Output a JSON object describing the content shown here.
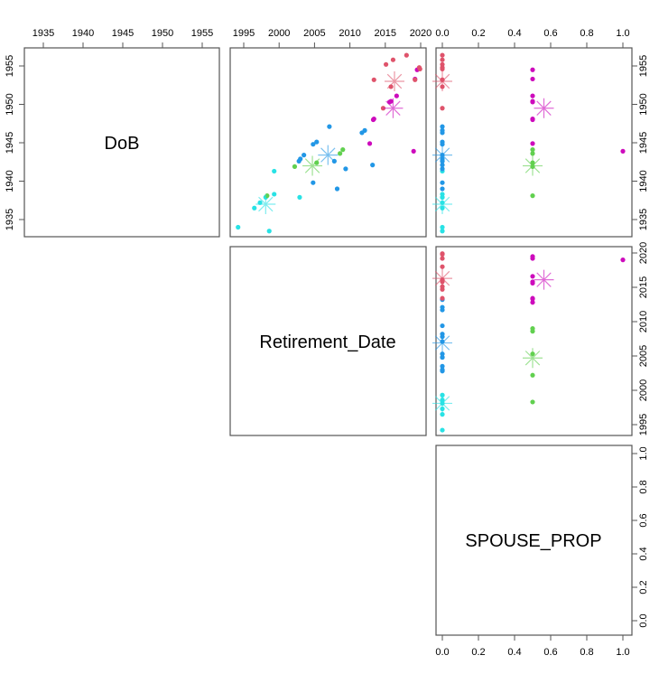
{
  "chart_data": {
    "type": "scatter",
    "title": "",
    "subtitle": "",
    "layout": "pairs (scatterplot matrix), upper panels only, k-means cluster coloring with centroid stars",
    "variables": [
      "DoB",
      "Retirement_Date",
      "SPOUSE_PROP"
    ],
    "axes": {
      "DoB": {
        "range": [
          1932.6,
          1957.3
        ],
        "ticks": [
          1935,
          1940,
          1945,
          1950,
          1955
        ]
      },
      "Retirement_Date": {
        "range": [
          1993.3,
          2020.8
        ],
        "ticks": [
          1995,
          2000,
          2005,
          2010,
          2015,
          2020
        ]
      },
      "SPOUSE_PROP": {
        "range": [
          -0.04,
          1.04
        ],
        "ticks": [
          0.0,
          0.2,
          0.4,
          0.6,
          0.8,
          1.0
        ],
        "tick_labels": [
          "0.0",
          "0.2",
          "0.4",
          "0.6",
          "0.8",
          "1.0"
        ]
      }
    },
    "grid": false,
    "legend": "none",
    "clusters": [
      {
        "name": "cluster-cyan",
        "color": "#28E2E5",
        "points": [
          {
            "DoB": 1934.0,
            "Retirement_Date": 1994.2,
            "SPOUSE_PROP": 0.0
          },
          {
            "DoB": 1933.5,
            "Retirement_Date": 1998.6,
            "SPOUSE_PROP": 0.0
          },
          {
            "DoB": 1936.5,
            "Retirement_Date": 1996.5,
            "SPOUSE_PROP": 0.0
          },
          {
            "DoB": 1937.2,
            "Retirement_Date": 1997.3,
            "SPOUSE_PROP": 0.0
          },
          {
            "DoB": 1937.9,
            "Retirement_Date": 1998.1,
            "SPOUSE_PROP": 0.0
          },
          {
            "DoB": 1938.3,
            "Retirement_Date": 1999.3,
            "SPOUSE_PROP": 0.0
          },
          {
            "DoB": 1941.3,
            "Retirement_Date": 1999.3,
            "SPOUSE_PROP": 0.0
          },
          {
            "DoB": 1937.9,
            "Retirement_Date": 2002.9,
            "SPOUSE_PROP": 0.0
          }
        ],
        "centroid": {
          "DoB": 1937.0,
          "Retirement_Date": 1998.1,
          "SPOUSE_PROP": 0.0
        }
      },
      {
        "name": "cluster-green",
        "color": "#61D04F",
        "points": [
          {
            "DoB": 1938.1,
            "Retirement_Date": 1998.3,
            "SPOUSE_PROP": 0.5
          },
          {
            "DoB": 1941.9,
            "Retirement_Date": 2002.2,
            "SPOUSE_PROP": 0.5
          },
          {
            "DoB": 1942.4,
            "Retirement_Date": 2005.3,
            "SPOUSE_PROP": 0.5
          },
          {
            "DoB": 1943.6,
            "Retirement_Date": 2008.6,
            "SPOUSE_PROP": 0.5
          },
          {
            "DoB": 1944.1,
            "Retirement_Date": 2009.0,
            "SPOUSE_PROP": 0.5
          }
        ],
        "centroid": {
          "DoB": 1942.0,
          "Retirement_Date": 2004.7,
          "SPOUSE_PROP": 0.5
        }
      },
      {
        "name": "cluster-blue",
        "color": "#2297E6",
        "points": [
          {
            "DoB": 1942.6,
            "Retirement_Date": 2002.8,
            "SPOUSE_PROP": 0.0
          },
          {
            "DoB": 1942.9,
            "Retirement_Date": 2003.0,
            "SPOUSE_PROP": 0.0
          },
          {
            "DoB": 1943.4,
            "Retirement_Date": 2003.5,
            "SPOUSE_PROP": 0.0
          },
          {
            "DoB": 1944.8,
            "Retirement_Date": 2004.8,
            "SPOUSE_PROP": 0.0
          },
          {
            "DoB": 1945.1,
            "Retirement_Date": 2005.3,
            "SPOUSE_PROP": 0.0
          },
          {
            "DoB": 1947.1,
            "Retirement_Date": 2007.1,
            "SPOUSE_PROP": 0.0
          },
          {
            "DoB": 1942.6,
            "Retirement_Date": 2007.8,
            "SPOUSE_PROP": 0.0
          },
          {
            "DoB": 1941.6,
            "Retirement_Date": 2009.4,
            "SPOUSE_PROP": 0.0
          },
          {
            "DoB": 1939.8,
            "Retirement_Date": 2004.8,
            "SPOUSE_PROP": 0.0
          },
          {
            "DoB": 1939.0,
            "Retirement_Date": 2008.2,
            "SPOUSE_PROP": 0.0
          },
          {
            "DoB": 1946.3,
            "Retirement_Date": 2011.7,
            "SPOUSE_PROP": 0.0
          },
          {
            "DoB": 1946.6,
            "Retirement_Date": 2012.1,
            "SPOUSE_PROP": 0.0
          },
          {
            "DoB": 1942.1,
            "Retirement_Date": 2013.2,
            "SPOUSE_PROP": 0.0
          }
        ],
        "centroid": {
          "DoB": 1943.4,
          "Retirement_Date": 2006.9,
          "SPOUSE_PROP": 0.0
        }
      },
      {
        "name": "cluster-magenta",
        "color": "#CD0BBC",
        "points": [
          {
            "DoB": 1944.9,
            "Retirement_Date": 2012.8,
            "SPOUSE_PROP": 0.5
          },
          {
            "DoB": 1948.0,
            "Retirement_Date": 2013.3,
            "SPOUSE_PROP": 0.5
          },
          {
            "DoB": 1948.1,
            "Retirement_Date": 2013.4,
            "SPOUSE_PROP": 0.5
          },
          {
            "DoB": 1950.3,
            "Retirement_Date": 2015.6,
            "SPOUSE_PROP": 0.5
          },
          {
            "DoB": 1950.4,
            "Retirement_Date": 2015.8,
            "SPOUSE_PROP": 0.5
          },
          {
            "DoB": 1951.1,
            "Retirement_Date": 2016.6,
            "SPOUSE_PROP": 0.5
          },
          {
            "DoB": 1943.9,
            "Retirement_Date": 2019.0,
            "SPOUSE_PROP": 1.0
          },
          {
            "DoB": 1954.5,
            "Retirement_Date": 2019.5,
            "SPOUSE_PROP": 0.5
          },
          {
            "DoB": 1953.3,
            "Retirement_Date": 2019.2,
            "SPOUSE_PROP": 0.5
          }
        ],
        "centroid": {
          "DoB": 1949.5,
          "Retirement_Date": 2016.1,
          "SPOUSE_PROP": 0.5625
        }
      },
      {
        "name": "cluster-red",
        "color": "#DF536B",
        "points": [
          {
            "DoB": 1953.2,
            "Retirement_Date": 2013.4,
            "SPOUSE_PROP": 0.0
          },
          {
            "DoB": 1949.5,
            "Retirement_Date": 2014.7,
            "SPOUSE_PROP": 0.0
          },
          {
            "DoB": 1955.2,
            "Retirement_Date": 2015.1,
            "SPOUSE_PROP": 0.0
          },
          {
            "DoB": 1955.8,
            "Retirement_Date": 2016.1,
            "SPOUSE_PROP": 0.0
          },
          {
            "DoB": 1956.4,
            "Retirement_Date": 2018.0,
            "SPOUSE_PROP": 0.0
          },
          {
            "DoB": 1952.3,
            "Retirement_Date": 2015.8,
            "SPOUSE_PROP": 0.0
          },
          {
            "DoB": 1953.2,
            "Retirement_Date": 2019.2,
            "SPOUSE_PROP": 0.0
          },
          {
            "DoB": 1954.8,
            "Retirement_Date": 2019.8,
            "SPOUSE_PROP": 0.0
          },
          {
            "DoB": 1954.6,
            "Retirement_Date": 2019.9,
            "SPOUSE_PROP": 0.0
          }
        ],
        "centroid": {
          "DoB": 1953.0,
          "Retirement_Date": 2016.3,
          "SPOUSE_PROP": 0.0
        }
      }
    ]
  },
  "labels": {
    "diag_0": "DoB",
    "diag_1": "Retirement_Date",
    "diag_2": "SPOUSE_PROP"
  }
}
